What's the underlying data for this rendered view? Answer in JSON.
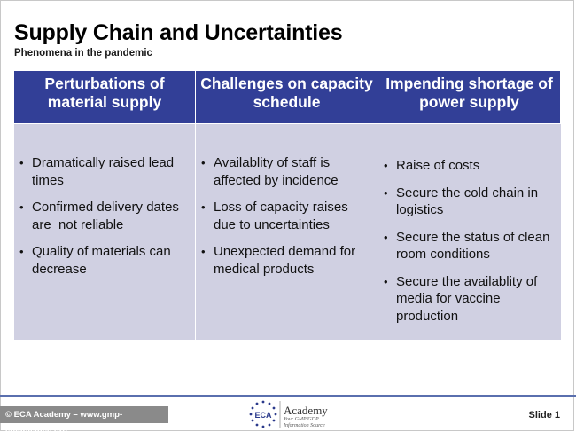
{
  "slide": {
    "title": "Supply Chain and Uncertainties",
    "subtitle": "Phenomena in the pandemic"
  },
  "table": {
    "columns": [
      {
        "header": "Perturbations of material supply",
        "items": [
          "Dramatically raised lead times",
          "Confirmed delivery dates  are  not reliable",
          "Quality of materials can decrease"
        ]
      },
      {
        "header": "Challenges on capacity schedule",
        "items": [
          "Availablity of staff is affected by incidence",
          "Loss of capacity raises due to uncertainties",
          "Unexpected demand for medical products"
        ]
      },
      {
        "header": "Impending shortage of power supply",
        "items": [
          "Raise of costs",
          "Secure the cold chain in logistics",
          "Secure the status of clean room conditions",
          "Secure the availablity of media for vaccine production"
        ]
      }
    ]
  },
  "footer": {
    "copyright": "© ECA Academy – www.gmp-compliance.org",
    "logo_text": "Academy",
    "logo_initials": "ECA",
    "logo_tagline": "Your GMP/GDP Information Source",
    "slide_number": "Slide 1"
  },
  "colors": {
    "header_bg": "#323f97",
    "cell_bg": "#d0d0e2",
    "footer_line": "#5a6fae",
    "footer_badge": "#8a8a8a"
  }
}
